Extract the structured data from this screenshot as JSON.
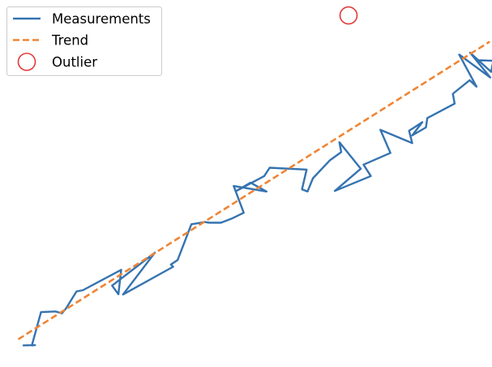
{
  "chart_data": {
    "type": "line",
    "title": "",
    "xlabel": "",
    "ylabel": "",
    "axes_visible": false,
    "grid": false,
    "legend_position": "top-left",
    "xlim": [
      -0.05,
      1.03
    ],
    "ylim": [
      -0.07,
      1.12
    ],
    "series": [
      {
        "name": "Measurements",
        "kind": "line",
        "color": "#3573b0",
        "x": [
          0.0,
          0.027,
          0.02,
          0.04,
          0.072,
          0.086,
          0.095,
          0.118,
          0.132,
          0.216,
          0.21,
          0.196,
          0.29,
          0.22,
          0.33,
          0.325,
          0.34,
          0.37,
          0.4,
          0.41,
          0.435,
          0.46,
          0.485,
          0.463,
          0.535,
          0.5,
          0.47,
          0.53,
          0.542,
          0.623,
          0.613,
          0.625,
          0.637,
          0.665,
          0.674,
          0.699,
          0.695,
          0.742,
          0.685,
          0.764,
          0.748,
          0.807,
          0.785,
          0.855,
          0.848,
          0.877,
          0.855,
          0.885,
          0.888,
          0.948,
          0.944,
          0.981,
          0.996,
          0.958,
          1.026,
          0.982,
          1.028,
          1.033,
          1.0
        ],
        "y": [
          0.0,
          0.001,
          0.0,
          0.108,
          0.11,
          0.104,
          0.12,
          0.175,
          0.179,
          0.245,
          0.166,
          0.194,
          0.301,
          0.165,
          0.255,
          0.262,
          0.277,
          0.393,
          0.4,
          0.398,
          0.398,
          0.412,
          0.43,
          0.517,
          0.499,
          0.528,
          0.502,
          0.549,
          0.576,
          0.57,
          0.506,
          0.499,
          0.542,
          0.586,
          0.6,
          0.627,
          0.659,
          0.573,
          0.501,
          0.549,
          0.586,
          0.624,
          0.699,
          0.656,
          0.696,
          0.724,
          0.681,
          0.707,
          0.737,
          0.784,
          0.816,
          0.86,
          0.839,
          0.943,
          0.869,
          0.949,
          0.887,
          0.923,
          0.925
        ]
      },
      {
        "name": "Trend",
        "kind": "line",
        "style": "dashed",
        "color": "#ef8535",
        "x": [
          -0.01,
          1.025
        ],
        "y": [
          0.02,
          0.985
        ]
      },
      {
        "name": "Outlier",
        "kind": "scatter",
        "marker": "hollow-circle",
        "color": "#e23a3a",
        "x": [
          0.715
        ],
        "y": [
          1.07
        ]
      }
    ]
  },
  "legend": {
    "items": [
      {
        "label": "Measurements",
        "kind": "line",
        "color": "#3573b0"
      },
      {
        "label": "Trend",
        "kind": "dashed",
        "color": "#ef8535"
      },
      {
        "label": "Outlier",
        "kind": "circle",
        "color": "#e23a3a"
      }
    ]
  }
}
